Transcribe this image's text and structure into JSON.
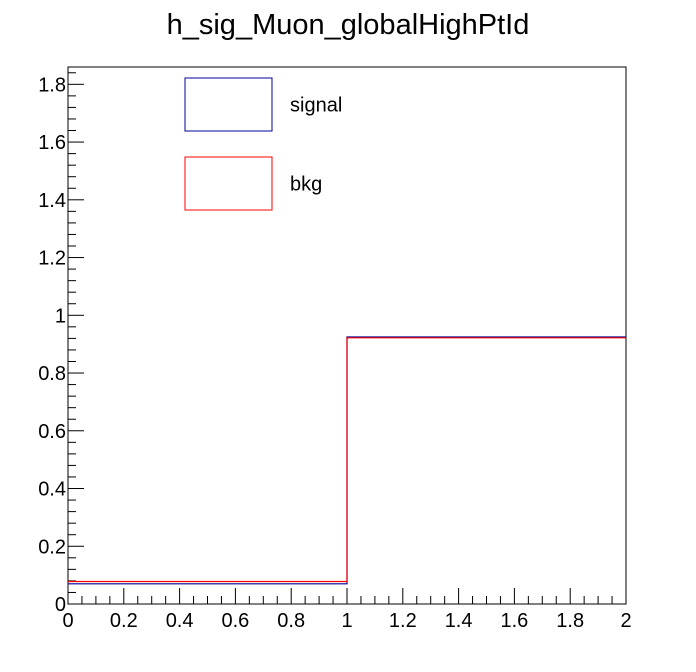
{
  "chart_data": {
    "type": "histogram",
    "title": "h_sig_Muon_globalHighPtId",
    "xlabel": "",
    "ylabel": "",
    "xlim": [
      0,
      2
    ],
    "ylim": [
      0,
      1.86
    ],
    "grid": false,
    "x_ticks": [
      "0",
      "0.2",
      "0.4",
      "0.6",
      "0.8",
      "1",
      "1.2",
      "1.4",
      "1.6",
      "1.8",
      "2"
    ],
    "y_ticks": [
      "0",
      "0.2",
      "0.4",
      "0.6",
      "0.8",
      "1",
      "1.2",
      "1.4",
      "1.6",
      "1.8"
    ],
    "bin_edges": [
      0,
      1,
      2
    ],
    "legend_position": "top-left",
    "series": [
      {
        "name": "signal",
        "color": "#000099",
        "values": [
          0.07,
          0.925
        ]
      },
      {
        "name": "bkg",
        "color": "#ff0000",
        "values": [
          0.078,
          0.922
        ]
      }
    ]
  }
}
